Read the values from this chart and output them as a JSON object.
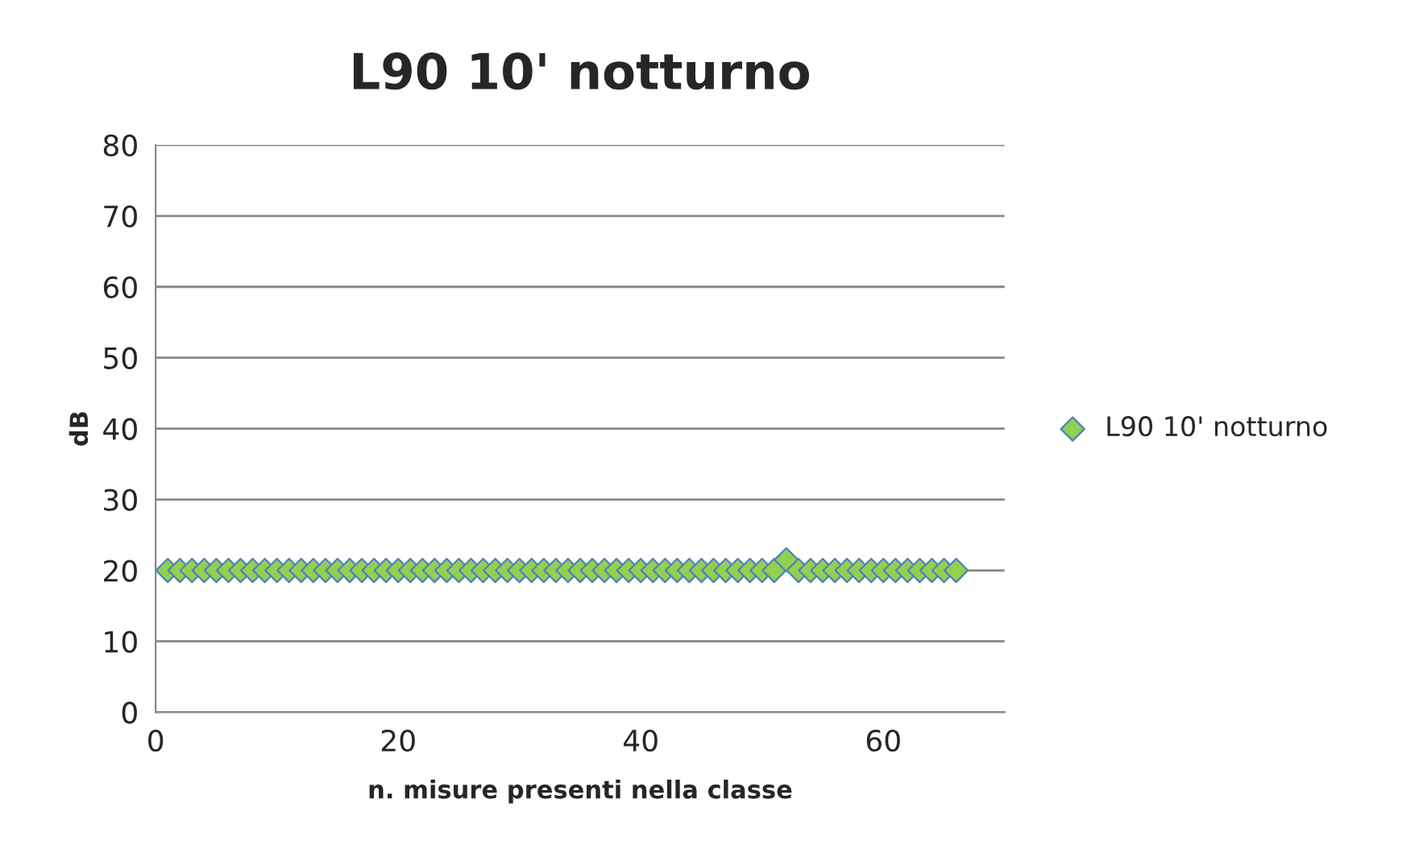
{
  "chart_data": {
    "type": "scatter",
    "title": "L90 10' notturno",
    "xlabel": "n. misure presenti nella classe",
    "ylabel": "dB",
    "x": [
      1,
      2,
      3,
      4,
      5,
      6,
      7,
      8,
      9,
      10,
      11,
      12,
      13,
      14,
      15,
      16,
      17,
      18,
      19,
      20,
      21,
      22,
      23,
      24,
      25,
      26,
      27,
      28,
      29,
      30,
      31,
      32,
      33,
      34,
      35,
      36,
      37,
      38,
      39,
      40,
      41,
      42,
      43,
      44,
      45,
      46,
      47,
      48,
      49,
      50,
      51,
      52,
      53,
      54,
      55,
      56,
      57,
      58,
      59,
      60,
      61,
      62,
      63,
      64,
      65,
      66
    ],
    "series": [
      {
        "name": "L90 10' notturno",
        "color": "#92d050",
        "values": [
          20,
          20,
          20,
          20,
          20,
          20,
          20,
          20,
          20,
          20,
          20,
          20,
          20,
          20,
          20,
          20,
          20,
          20,
          20,
          20,
          20,
          20,
          20,
          20,
          20,
          20,
          20,
          20,
          20,
          20,
          20,
          20,
          20,
          20,
          20,
          20,
          20,
          20,
          20,
          20,
          20,
          20,
          20,
          20,
          20,
          20,
          20,
          20,
          20,
          20,
          20,
          21.5,
          20,
          20,
          20,
          20,
          20,
          20,
          20,
          20,
          20,
          20,
          20,
          20,
          20,
          20
        ]
      }
    ],
    "xlim": [
      0,
      70
    ],
    "xticks": [
      0,
      20,
      40,
      60
    ],
    "ylim": [
      0,
      80
    ],
    "yticks": [
      0,
      10,
      20,
      30,
      40,
      50,
      60,
      70,
      80
    ],
    "grid": "y",
    "legend": "right",
    "marker": "diamond"
  }
}
